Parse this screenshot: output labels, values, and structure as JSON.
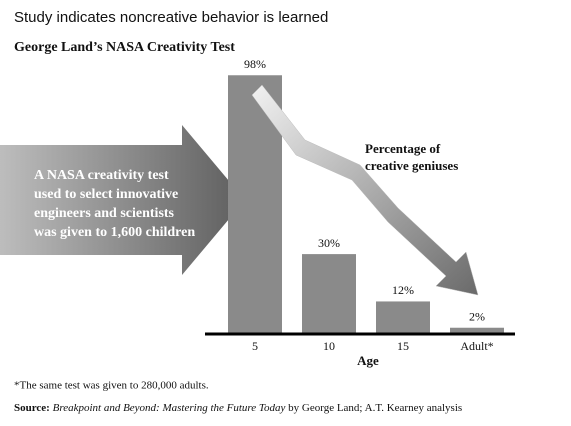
{
  "chart_data": {
    "type": "bar",
    "title": "Study indicates noncreative behavior is learned",
    "subtitle": "George Land’s NASA Creativity Test",
    "categories": [
      "5",
      "10",
      "15",
      "Adult*"
    ],
    "values": [
      98,
      30,
      12,
      2
    ],
    "value_labels": [
      "98%",
      "30%",
      "12%",
      "2%"
    ],
    "color": "#8a8a8a",
    "x_label": "Age",
    "callout": [
      "A NASA creativity test",
      "used to select innovative",
      "engineers and scientists",
      "was given to 1,600 children"
    ],
    "trend_label": [
      "Percentage of",
      "creative geniuses"
    ],
    "footnote": "*The same test was given to 280,000 adults.",
    "source": {
      "label": "Source:",
      "title": "Breakpoint and Beyond: Mastering the Future Today",
      "rest": " by George Land; A.T. Kearney analysis"
    }
  }
}
